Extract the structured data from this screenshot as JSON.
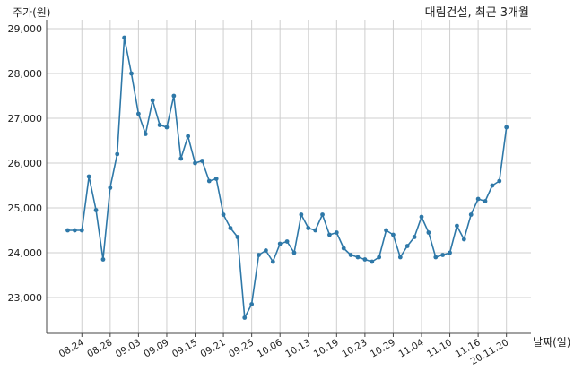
{
  "chart_data": {
    "type": "line",
    "title": "대림건설, 최근 3개월",
    "ylabel": "주가(원)",
    "xlabel": "날짜(일)",
    "ylim": [
      22200,
      29200
    ],
    "grid": true,
    "y_ticks": [
      23000,
      24000,
      25000,
      26000,
      27000,
      28000,
      29000
    ],
    "y_tick_labels": [
      "23,000",
      "24,000",
      "25,000",
      "26,000",
      "27,000",
      "28,000",
      "29,000"
    ],
    "x_tick_labels": [
      "08.24",
      "08.28",
      "09.03",
      "09.09",
      "09.15",
      "09.21",
      "09.25",
      "10.06",
      "10.13",
      "10.19",
      "10.23",
      "10.29",
      "11.04",
      "11.10",
      "11.16",
      "20.11.20"
    ],
    "x_tick_index": [
      2,
      6,
      10,
      14,
      18,
      22,
      26,
      30,
      34,
      38,
      42,
      46,
      50,
      54,
      58,
      62
    ],
    "series": [
      {
        "color": "#2e78a8",
        "values": [
          24500,
          24500,
          24500,
          25700,
          24950,
          23850,
          25450,
          26200,
          28800,
          28000,
          27100,
          26650,
          27400,
          26850,
          26800,
          27500,
          26100,
          26600,
          26000,
          26050,
          25600,
          25650,
          24850,
          24550,
          24350,
          22550,
          22850,
          23950,
          24050,
          23800,
          24200,
          24250,
          24000,
          24850,
          24550,
          24500,
          24850,
          24400,
          24450,
          24100,
          23950,
          23900,
          23850,
          23800,
          23900,
          24500,
          24400,
          23900,
          24150,
          24350,
          24800,
          24450,
          23900,
          23950,
          24000,
          24600,
          24300,
          24850,
          25200,
          25150,
          25500,
          25600,
          26800
        ]
      }
    ]
  }
}
